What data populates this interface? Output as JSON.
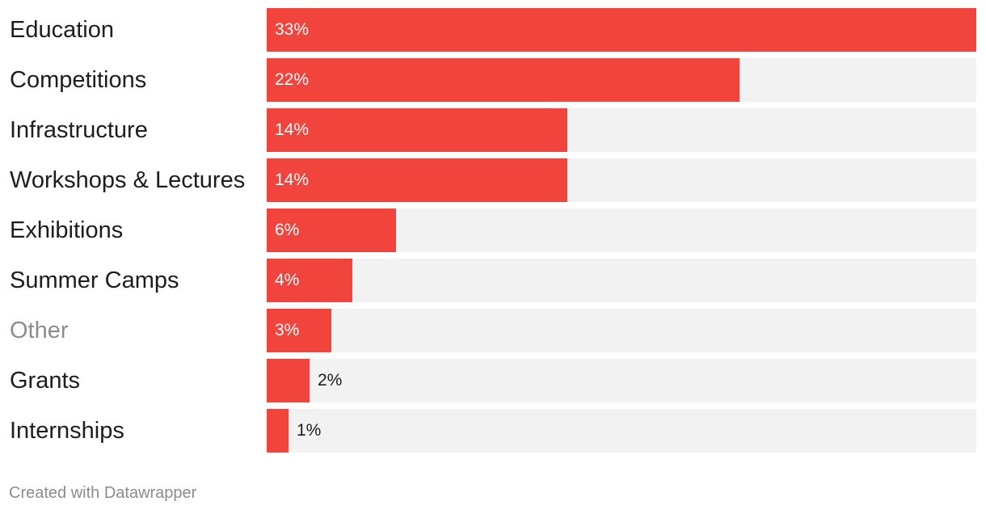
{
  "chart_data": {
    "type": "bar",
    "orientation": "horizontal",
    "categories": [
      "Education",
      "Competitions",
      "Infrastructure",
      "Workshops & Lectures",
      "Exhibitions",
      "Summer Camps",
      "Other",
      "Grants",
      "Internships"
    ],
    "values": [
      33,
      22,
      14,
      14,
      6,
      4,
      3,
      2,
      1
    ],
    "value_labels": [
      "33%",
      "22%",
      "14%",
      "14%",
      "6%",
      "4%",
      "3%",
      "2%",
      "1%"
    ],
    "unit": "%",
    "muted_categories": [
      "Other"
    ],
    "xlim": [
      0,
      33
    ],
    "grid": false,
    "legend": "none",
    "colors": {
      "bar": "#f0443d",
      "track": "#f2f2f2",
      "label": "#1d1d1d",
      "muted_label": "#8c8c8c",
      "value_inside": "#ffffff",
      "value_outside": "#1d1d1d"
    }
  },
  "footer": {
    "credit": "Created with Datawrapper"
  }
}
